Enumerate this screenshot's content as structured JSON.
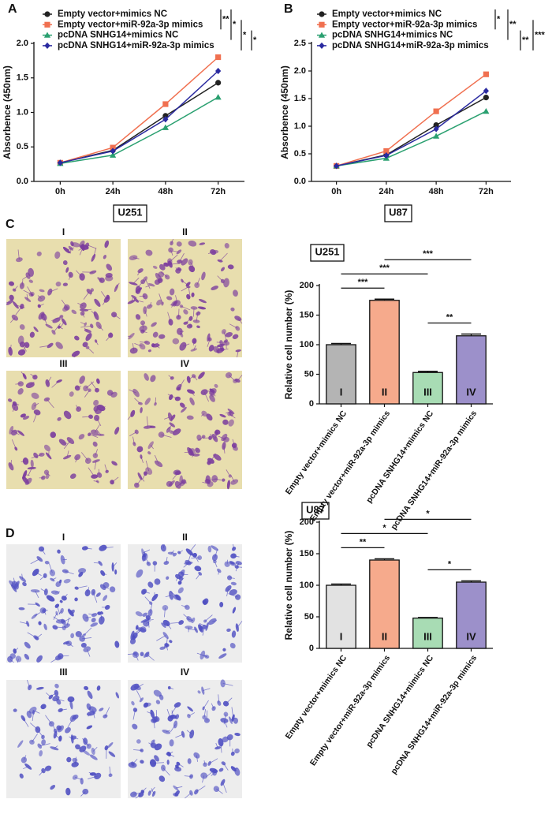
{
  "chart_data": [
    {
      "type": "line",
      "panel_label": "A",
      "title": "U251",
      "ylabel": "Absorbence (450nm)",
      "x": [
        "0h",
        "24h",
        "48h",
        "72h"
      ],
      "series": [
        {
          "name": "Empty vector+mimics NC",
          "color": "#222222",
          "marker": "circle",
          "values": [
            0.27,
            0.45,
            0.95,
            1.43
          ]
        },
        {
          "name": "Empty vector+miR-92a-3p mimics",
          "color": "#f07050",
          "marker": "square",
          "values": [
            0.27,
            0.49,
            1.12,
            1.8
          ]
        },
        {
          "name": "pcDNA SNHG14+mimics NC",
          "color": "#2aa070",
          "marker": "triangle",
          "values": [
            0.26,
            0.38,
            0.78,
            1.22
          ]
        },
        {
          "name": "pcDNA SNHG14+miR-92a-3p mimics",
          "color": "#2a2aa0",
          "marker": "diamond",
          "values": [
            0.27,
            0.44,
            0.9,
            1.6
          ]
        }
      ],
      "ylim": [
        0,
        2
      ],
      "yticks": [
        {
          "value": 0,
          "label": "0.0"
        },
        0.5,
        {
          "value": 1,
          "label": "1.0"
        },
        1.5,
        {
          "value": 2,
          "label": "2.0"
        }
      ],
      "legend": "top",
      "significance": [
        {
          "label": "**",
          "groups": [
            0,
            1
          ]
        },
        {
          "label": "*",
          "groups": [
            0,
            2
          ]
        },
        {
          "label": "*",
          "groups": [
            1,
            3
          ]
        },
        {
          "label": "*",
          "groups": [
            2,
            3
          ]
        }
      ]
    },
    {
      "type": "line",
      "panel_label": "B",
      "title": "U87",
      "ylabel": "Absorbence (450nm)",
      "x": [
        "0h",
        "24h",
        "48h",
        "72h"
      ],
      "series": [
        {
          "name": "Empty vector+mimics NC",
          "color": "#222222",
          "marker": "circle",
          "values": [
            0.28,
            0.48,
            1.02,
            1.52
          ]
        },
        {
          "name": "Empty vector+miR-92a-3p mimics",
          "color": "#f07050",
          "marker": "square",
          "values": [
            0.28,
            0.55,
            1.27,
            1.94
          ]
        },
        {
          "name": "pcDNA SNHG14+mimics NC",
          "color": "#2aa070",
          "marker": "triangle",
          "values": [
            0.28,
            0.42,
            0.82,
            1.27
          ]
        },
        {
          "name": "pcDNA SNHG14+miR-92a-3p mimics",
          "color": "#2a2aa0",
          "marker": "diamond",
          "values": [
            0.28,
            0.47,
            0.95,
            1.64
          ]
        }
      ],
      "ylim": [
        0,
        2.5
      ],
      "yticks": [
        {
          "value": 0,
          "label": "0.0"
        },
        0.5,
        {
          "value": 1,
          "label": "1.0"
        },
        1.5,
        {
          "value": 2,
          "label": "2.0"
        },
        2.5
      ],
      "legend": "top",
      "significance": [
        {
          "label": "*",
          "groups": [
            0,
            1
          ]
        },
        {
          "label": "**",
          "groups": [
            0,
            2
          ]
        },
        {
          "label": "**",
          "groups": [
            2,
            3
          ]
        },
        {
          "label": "***",
          "groups": [
            1,
            3
          ]
        }
      ]
    },
    {
      "type": "bar",
      "panel_label": "C",
      "title": "U251",
      "ylabel": "Relative cell number (%)",
      "image_labels": [
        "I",
        "II",
        "III",
        "IV"
      ],
      "categories": [
        "Empty vector+mimics NC",
        "Empty vector+miR-92a-3p mimics",
        "pcDNA SNHG14+mimics NC",
        "pcDNA SNHG14+miR-92a-3p mimics"
      ],
      "bar_labels": [
        "I",
        "II",
        "III",
        "IV"
      ],
      "values": [
        100,
        175,
        53,
        115
      ],
      "errors": [
        2,
        2,
        2,
        3
      ],
      "colors": [
        "#b4b4b4",
        "#f6aa8c",
        "#a8dcb4",
        "#9c90ca"
      ],
      "ylim": [
        0,
        200
      ],
      "yticks": [
        0,
        50,
        100,
        150,
        200
      ],
      "significance": [
        {
          "label": "**",
          "groups": [
            2,
            3
          ]
        },
        {
          "label": "***",
          "groups": [
            0,
            1
          ]
        },
        {
          "label": "***",
          "groups": [
            0,
            2
          ]
        },
        {
          "label": "***",
          "groups": [
            1,
            3
          ]
        }
      ]
    },
    {
      "type": "bar",
      "panel_label": "D",
      "title": "U87",
      "ylabel": "Relative cell number (%)",
      "image_labels": [
        "I",
        "II",
        "III",
        "IV"
      ],
      "categories": [
        "Empty vector+mimics NC",
        "Empty vector+miR-92a-3p mimics",
        "pcDNA SNHG14+mimics NC",
        "pcDNA SNHG14+miR-92a-3p mimics"
      ],
      "bar_labels": [
        "I",
        "II",
        "III",
        "IV"
      ],
      "values": [
        100,
        140,
        48,
        105
      ],
      "errors": [
        2,
        2,
        1,
        2
      ],
      "colors": [
        "#e2e2e2",
        "#f6aa8c",
        "#a8dcb4",
        "#9c90ca"
      ],
      "ylim": [
        0,
        200
      ],
      "yticks": [
        0,
        50,
        100,
        150,
        200
      ],
      "significance": [
        {
          "label": "*",
          "groups": [
            2,
            3
          ]
        },
        {
          "label": "**",
          "groups": [
            0,
            1
          ]
        },
        {
          "label": "*",
          "groups": [
            0,
            2
          ]
        },
        {
          "label": "*",
          "groups": [
            1,
            3
          ]
        }
      ]
    }
  ]
}
